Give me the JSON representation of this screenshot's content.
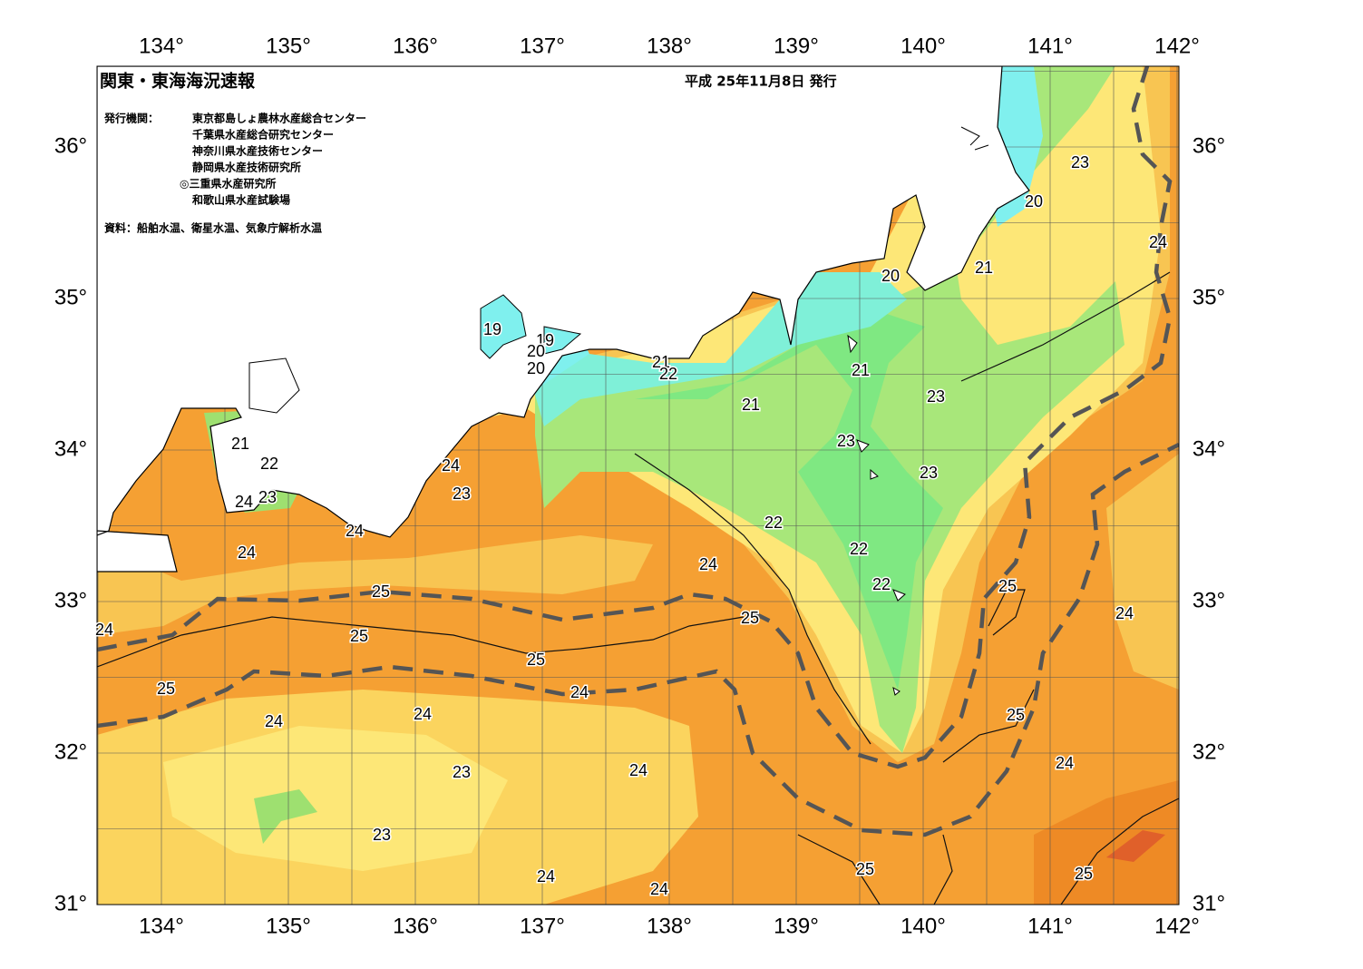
{
  "header": {
    "title": "関東・東海海況速報",
    "date": "平成 25年11月8日 発行",
    "issuers_label": "発行機関：",
    "issuers": [
      "東京都島しょ農林水産総合センター",
      "千葉県水産総合研究センター",
      "神奈川県水産技術センター",
      "静岡県水産技術研究所",
      "◎三重県水産研究所",
      "和歌山県水産試験場"
    ],
    "source": "資料：船舶水温、衛星水温、気象庁解析水温"
  },
  "longitude_labels": [
    "134°",
    "135°",
    "136°",
    "137°",
    "138°",
    "139°",
    "140°",
    "141°",
    "142°"
  ],
  "latitude_labels": [
    "31°",
    "32°",
    "33°",
    "34°",
    "35°",
    "36°"
  ],
  "contour_labels": [
    "19",
    "19",
    "20",
    "20",
    "21",
    "22",
    "21",
    "21",
    "23",
    "23",
    "23",
    "20",
    "23",
    "24",
    "21",
    "20",
    "21",
    "22",
    "24",
    "23",
    "24",
    "23",
    "24",
    "24",
    "22",
    "22",
    "24",
    "22",
    "25",
    "24",
    "25",
    "25",
    "24",
    "25",
    "25",
    "25",
    "24",
    "24",
    "24",
    "25",
    "24",
    "23",
    "24",
    "23",
    "25",
    "24",
    "24",
    "25"
  ]
}
